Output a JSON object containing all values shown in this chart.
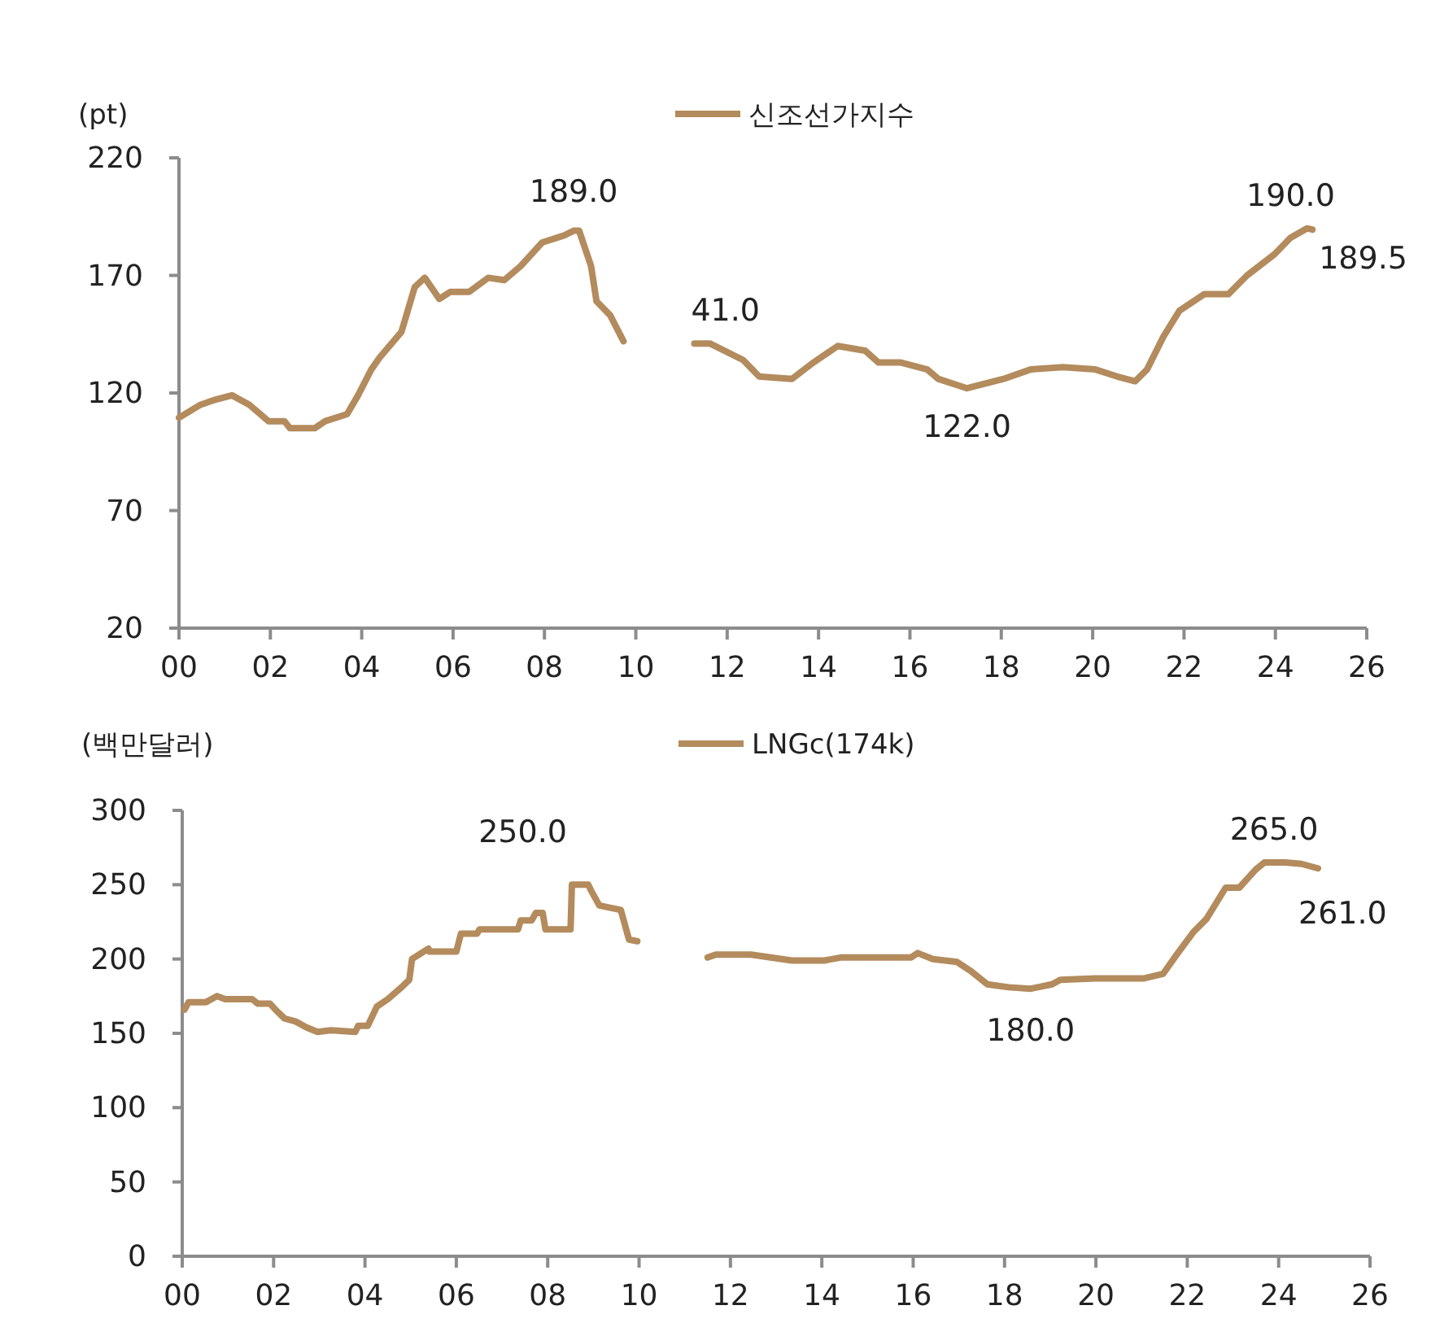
{
  "chart_data": [
    {
      "type": "line",
      "ylabel": "(pt)",
      "legend": "top",
      "marker": "none",
      "line_style": "solid",
      "xlim": [
        0,
        26
      ],
      "ylim": [
        20,
        220
      ],
      "xticks": [
        {
          "value": 0,
          "label": "00"
        },
        {
          "value": 2,
          "label": "02"
        },
        {
          "value": 4,
          "label": "04"
        },
        {
          "value": 6,
          "label": "06"
        },
        {
          "value": 8,
          "label": "08"
        },
        {
          "value": 10,
          "label": "10"
        },
        {
          "value": 12,
          "label": "12"
        },
        {
          "value": 14,
          "label": "14"
        },
        {
          "value": 16,
          "label": "16"
        },
        {
          "value": 18,
          "label": "18"
        },
        {
          "value": 20,
          "label": "20"
        },
        {
          "value": 22,
          "label": "22"
        },
        {
          "value": 24,
          "label": "24"
        },
        {
          "value": 26,
          "label": "26"
        }
      ],
      "yticks": [
        20,
        70,
        120,
        170,
        220
      ],
      "series": [
        {
          "name": "신조선가지수",
          "color": "#b38b5d",
          "x": [
            0,
            0.47,
            0.77,
            1.16,
            1.54,
            1.96,
            2.31,
            2.43,
            2.97,
            3.2,
            3.68,
            3.92,
            4.21,
            4.39,
            4.87,
            5.16,
            5.38,
            5.7,
            5.94,
            6.35,
            6.77,
            7.12,
            7.48,
            7.95,
            8.43,
            8.64,
            8.76,
            9.02,
            9.14,
            9.44,
            9.73
          ],
          "values": [
            109.5,
            115,
            117,
            119,
            115,
            108,
            108,
            105,
            105,
            108,
            111,
            119,
            130,
            135,
            146,
            165,
            169,
            160,
            163,
            163,
            169,
            168,
            174,
            184,
            187,
            189,
            189,
            174,
            159,
            153,
            142
          ]
        },
        {
          "color": "#b38b5d",
          "x": [
            11.28,
            11.63,
            12.35,
            12.7,
            13.42,
            13.89,
            14.42,
            15.02,
            15.31,
            15.79,
            16.38,
            16.62,
            17.25,
            18.05,
            18.64,
            19.35,
            20.06,
            20.54,
            20.93,
            21.19,
            21.55,
            21.9,
            22.44,
            22.97,
            23.38,
            23.98,
            24.33,
            24.69,
            24.81
          ],
          "values": [
            141,
            141,
            134,
            127,
            126,
            133,
            140,
            138,
            133,
            133,
            130,
            126,
            122,
            126,
            130,
            131,
            130,
            127,
            125,
            130,
            144,
            155,
            162,
            162,
            170,
            179,
            186,
            190,
            189.5
          ]
        }
      ],
      "annotations": [
        {
          "text": "189.0",
          "x": 8.64,
          "y": 189
        },
        {
          "text": "41.0",
          "x": 11.28,
          "y": 141
        },
        {
          "text": "122.0",
          "x": 17.25,
          "y": 122
        },
        {
          "text": "190.0",
          "x": 24.69,
          "y": 190
        },
        {
          "text": "189.5",
          "x": 24.81,
          "y": 189.5
        }
      ]
    },
    {
      "type": "line",
      "ylabel": "(백만달러)",
      "legend": "top",
      "marker": "none",
      "line_style": "solid",
      "xlim": [
        0,
        26
      ],
      "ylim": [
        0,
        300
      ],
      "xticks": [
        {
          "value": 0,
          "label": "00"
        },
        {
          "value": 2,
          "label": "02"
        },
        {
          "value": 4,
          "label": "04"
        },
        {
          "value": 6,
          "label": "06"
        },
        {
          "value": 8,
          "label": "08"
        },
        {
          "value": 10,
          "label": "10"
        },
        {
          "value": 12,
          "label": "12"
        },
        {
          "value": 14,
          "label": "14"
        },
        {
          "value": 16,
          "label": "16"
        },
        {
          "value": 18,
          "label": "18"
        },
        {
          "value": 20,
          "label": "20"
        },
        {
          "value": 22,
          "label": "22"
        },
        {
          "value": 24,
          "label": "24"
        },
        {
          "value": 26,
          "label": "26"
        }
      ],
      "yticks": [
        0,
        50,
        100,
        150,
        200,
        250,
        300
      ],
      "series": [
        {
          "name": "LNGc(174k)",
          "color": "#b38b5d",
          "x": [
            0.05,
            0.14,
            0.52,
            0.76,
            0.94,
            1.53,
            1.65,
            1.92,
            2.07,
            2.24,
            2.48,
            2.72,
            2.96,
            3.25,
            3.79,
            3.85,
            4.06,
            4.26,
            4.5,
            4.8,
            4.97,
            5.03,
            5.39,
            5.41,
            6.0,
            6.1,
            6.45,
            6.51,
            7.35,
            7.41,
            7.65,
            7.74,
            7.89,
            7.95,
            8.5,
            8.53,
            8.89,
            8.95,
            9.13,
            9.6,
            9.78,
            9.96
          ],
          "values": [
            166,
            171,
            171,
            175,
            173,
            173,
            170,
            170,
            165,
            160,
            158,
            154,
            151,
            152,
            151,
            155,
            155,
            168,
            173,
            181,
            186,
            200,
            207,
            205,
            205,
            217,
            217,
            220,
            220,
            226,
            226,
            231,
            231,
            220,
            220,
            250,
            250,
            246,
            236,
            233,
            213,
            212
          ]
        },
        {
          "color": "#b38b5d",
          "x": [
            11.5,
            11.68,
            12.45,
            13.34,
            14.06,
            14.41,
            15.95,
            16.1,
            16.43,
            16.96,
            17.26,
            17.62,
            18.09,
            18.57,
            19.04,
            19.22,
            19.99,
            21.06,
            21.47,
            21.77,
            22.13,
            22.42,
            22.84,
            23.14,
            23.49,
            23.69,
            24.15,
            24.5,
            24.86
          ],
          "values": [
            201,
            203,
            203,
            199,
            199,
            201,
            201,
            204,
            200,
            198,
            192,
            183,
            181,
            180,
            183,
            186,
            187,
            187,
            190,
            203,
            218,
            227,
            248,
            248,
            260,
            265,
            265,
            264,
            261
          ]
        }
      ],
      "annotations": [
        {
          "text": "250.0",
          "x": 8.7,
          "y": 250
        },
        {
          "text": "180.0",
          "x": 18.57,
          "y": 180
        },
        {
          "text": "265.0",
          "x": 23.9,
          "y": 265
        },
        {
          "text": "261.0",
          "x": 24.86,
          "y": 261
        }
      ]
    }
  ]
}
